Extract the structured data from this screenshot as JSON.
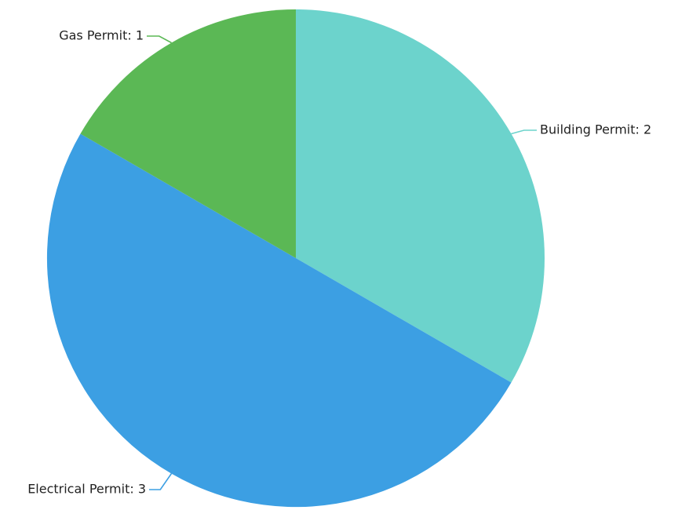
{
  "chart_data": {
    "type": "pie",
    "title": "",
    "start_angle_deg": 0,
    "direction": "clockwise",
    "slices": [
      {
        "label": "Building Permit",
        "value": 2,
        "text": "Building Permit: 2",
        "color": "#6cd3cc"
      },
      {
        "label": "Electrical Permit",
        "value": 3,
        "text": "Electrical Permit: 3",
        "color": "#3c9fe3"
      },
      {
        "label": "Gas Permit",
        "value": 1,
        "text": "Gas Permit: 1",
        "color": "#5bb855"
      }
    ]
  }
}
